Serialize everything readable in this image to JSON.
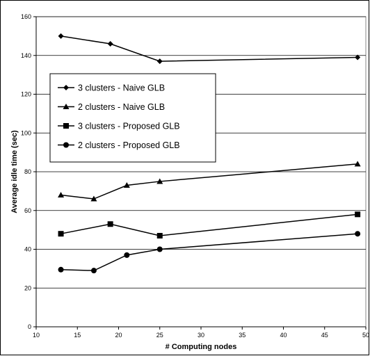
{
  "chart_data": {
    "type": "line",
    "xlabel": "# Computing nodes",
    "ylabel": "Average idle time (sec)",
    "xlim": [
      10,
      50
    ],
    "ylim": [
      0,
      160
    ],
    "xticks": [
      10,
      15,
      20,
      25,
      30,
      35,
      40,
      45,
      50
    ],
    "yticks": [
      0,
      20,
      40,
      60,
      80,
      100,
      120,
      140,
      160
    ],
    "grid": "horizontal",
    "legend_position": "upper-left",
    "series": [
      {
        "name": "3 clusters - Naive GLB",
        "marker": "diamond",
        "x": [
          13,
          19,
          25,
          49
        ],
        "y": [
          150,
          146,
          137,
          139
        ]
      },
      {
        "name": "2 clusters - Naive GLB",
        "marker": "triangle",
        "x": [
          13,
          17,
          21,
          25,
          49
        ],
        "y": [
          68,
          66,
          73,
          75,
          84
        ]
      },
      {
        "name": "3 clusters - Proposed GLB",
        "marker": "square",
        "x": [
          13,
          19,
          25,
          49
        ],
        "y": [
          48,
          53,
          47,
          58
        ]
      },
      {
        "name": "2 clusters - Proposed GLB",
        "marker": "circle",
        "x": [
          13,
          17,
          21,
          25,
          49
        ],
        "y": [
          29.5,
          29,
          37,
          40,
          48
        ]
      }
    ]
  }
}
